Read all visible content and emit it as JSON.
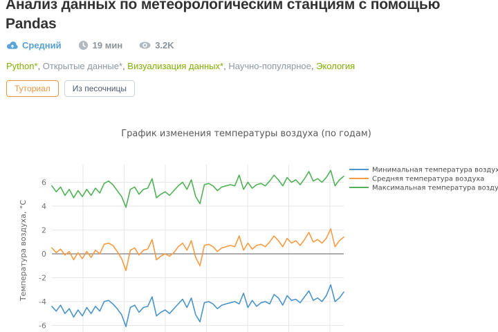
{
  "colors": {
    "title-color": "#333333",
    "accent-blue": "#57a0d2",
    "icon-blue": "#5ba4d9",
    "icon-gray": "#b2bac0",
    "meta-gray": "#8b9299",
    "tag-green": "#7fae00",
    "tag-gray": "#8f979e",
    "badge-orange": "#ec9540",
    "badge-gray-border": "#ccd5dc",
    "badge-gray-text": "#4c5a6e",
    "chart-title-color": "#595959",
    "axis-text": "#737373",
    "grid-color": "#e7e7e7",
    "zero-line": "#7a7a7a"
  },
  "header": {
    "title": "Анализ данных по метеорологическим станциям с помощью Pandas",
    "meta": {
      "difficulty": {
        "label": "Средний",
        "icon": "cloud-icon"
      },
      "reading_time": {
        "label": "19 мин",
        "icon": "clock-icon"
      },
      "views": {
        "label": "3.2K",
        "icon": "eye-icon"
      }
    },
    "tags": [
      {
        "label": "Python*",
        "style": "green"
      },
      {
        "label": "Открытые данные*",
        "style": "gray"
      },
      {
        "label": "Визуализация данных*",
        "style": "green"
      },
      {
        "label": "Научно-популярное",
        "style": "gray"
      },
      {
        "label": "Экология",
        "style": "green"
      }
    ],
    "tags_separator": ", ",
    "badges": [
      {
        "label": "Туториал",
        "style": "orange"
      },
      {
        "label": "Из песочницы",
        "style": "gray"
      }
    ]
  },
  "chart_data": {
    "type": "line",
    "title": "График изменения температуры воздуха (по годам)",
    "xlabel": "",
    "ylabel": "Температура воздуха, °C",
    "ylim": [
      -6.8,
      7.5
    ],
    "yticks": [
      6,
      4,
      2,
      0,
      -2,
      -4,
      -6
    ],
    "grid": true,
    "legend_position": "upper-right-outside",
    "x_tick_labels_visible": false,
    "series": [
      {
        "name": "Минимальная температура воздуха",
        "color": "#4a94c8",
        "values": [
          -4.4,
          -4.8,
          -4.3,
          -5.0,
          -4.6,
          -5.3,
          -4.7,
          -5.2,
          -4.5,
          -5.0,
          -4.4,
          -4.8,
          -4.0,
          -3.9,
          -4.2,
          -4.6,
          -5.1,
          -6.1,
          -4.5,
          -4.3,
          -4.9,
          -4.5,
          -4.4,
          -3.6,
          -5.2,
          -4.9,
          -4.7,
          -5.0,
          -4.6,
          -4.2,
          -3.8,
          -4.5,
          -3.7,
          -5.1,
          -5.7,
          -4.1,
          -4.0,
          -4.2,
          -4.6,
          -4.3,
          -4.2,
          -4.1,
          -4.0,
          -4.2,
          -3.3,
          -4.5,
          -3.9,
          -4.4,
          -4.1,
          -4.0,
          -4.2,
          -3.4,
          -3.7,
          -4.3,
          -3.5,
          -3.9,
          -3.8,
          -4.1,
          -3.6,
          -3.1,
          -3.9,
          -3.7,
          -4.0,
          -3.5,
          -2.6,
          -4.0,
          -3.7,
          -3.2
        ]
      },
      {
        "name": "Средняя температура воздуха",
        "color": "#f89b42",
        "values": [
          0.5,
          0.1,
          0.4,
          -0.1,
          0.2,
          -0.5,
          0.1,
          -0.4,
          0.2,
          -0.3,
          0.3,
          0.0,
          0.8,
          0.9,
          0.7,
          0.2,
          -0.4,
          -1.4,
          0.3,
          0.5,
          -0.1,
          0.3,
          0.4,
          1.2,
          -0.5,
          -0.2,
          0.0,
          -0.2,
          0.1,
          0.6,
          0.9,
          0.3,
          1.1,
          -0.3,
          -1.0,
          0.7,
          0.8,
          0.6,
          0.2,
          0.5,
          0.6,
          0.7,
          0.6,
          1.5,
          0.3,
          0.9,
          0.4,
          0.7,
          0.8,
          0.6,
          1.0,
          1.5,
          1.1,
          0.6,
          1.3,
          0.9,
          1.1,
          0.7,
          1.2,
          1.8,
          1.0,
          1.2,
          0.9,
          1.3,
          2.1,
          0.6,
          1.1,
          1.4
        ]
      },
      {
        "name": "Максимальная температура воздуха",
        "color": "#4fb155",
        "values": [
          5.7,
          5.2,
          5.6,
          4.9,
          5.4,
          4.7,
          5.3,
          4.8,
          5.4,
          4.9,
          5.5,
          5.1,
          5.9,
          6.1,
          5.8,
          5.3,
          4.8,
          3.9,
          5.4,
          5.6,
          5.0,
          5.4,
          5.5,
          6.3,
          4.7,
          5.0,
          5.2,
          4.9,
          5.3,
          5.7,
          6.0,
          5.4,
          6.2,
          4.8,
          4.2,
          5.8,
          5.9,
          5.7,
          5.3,
          5.6,
          5.7,
          5.8,
          5.7,
          6.6,
          5.4,
          6.0,
          5.5,
          5.8,
          5.9,
          5.7,
          6.1,
          6.6,
          6.2,
          5.7,
          6.4,
          6.0,
          6.2,
          5.8,
          6.3,
          6.9,
          6.1,
          6.3,
          6.0,
          6.4,
          7.0,
          5.7,
          6.2,
          6.5
        ]
      }
    ]
  }
}
